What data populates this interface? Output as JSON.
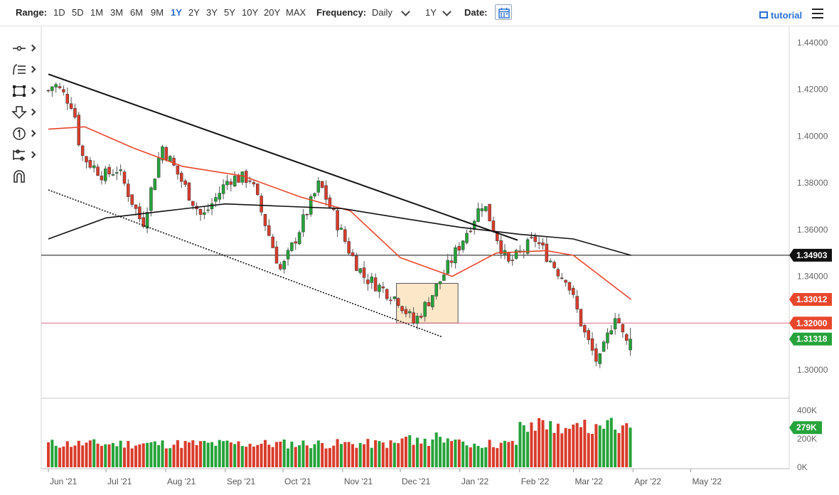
{
  "toolbar": {
    "range_label": "Range:",
    "ranges": [
      "1D",
      "5D",
      "1M",
      "3M",
      "6M",
      "9M",
      "1Y",
      "2Y",
      "3Y",
      "5Y",
      "10Y",
      "20Y",
      "MAX"
    ],
    "active_range": "1Y",
    "frequency_label": "Frequency:",
    "frequency_value": "Daily",
    "period_value": "1Y",
    "date_label": "Date:",
    "tutorial_label": "tutorial",
    "date_icon": "calendar-icon",
    "menu_icon": "hamburger-menu-icon"
  },
  "left_tools": [
    {
      "name": "line-tool",
      "icon": "line-icon"
    },
    {
      "name": "fib-tool",
      "icon": "fibonacci-icon"
    },
    {
      "name": "shape-tool",
      "icon": "rectangle-icon"
    },
    {
      "name": "arrow-tool",
      "icon": "arrow-down-icon"
    },
    {
      "name": "counter-tool",
      "icon": "numbered-circle-icon"
    },
    {
      "name": "measure-tool",
      "icon": "measure-icon"
    },
    {
      "name": "magnet-tool",
      "icon": "magnet-icon"
    }
  ],
  "chart_data": {
    "type": "candlestick",
    "title": "",
    "xlabel": "",
    "ylabel": "",
    "ylim": [
      1.2925,
      1.4475
    ],
    "y_ticks": [
      "1.30000",
      "1.32000",
      "1.34000",
      "1.36000",
      "1.38000",
      "1.40000",
      "1.42000",
      "1.44000"
    ],
    "x_axis_labels": [
      "Jun '21",
      "Jul '21",
      "Aug '21",
      "Sep '21",
      "Oct '21",
      "Nov '21",
      "Dec '21",
      "Jan '22",
      "Feb '22",
      "Mar '22",
      "Apr '22",
      "May '22"
    ],
    "volume_ticks": [
      "0K",
      "200K",
      "400K"
    ],
    "volume_ylim": [
      0,
      400000
    ],
    "grid": false,
    "colors": {
      "up": "#26a33a",
      "down": "#d93c2c",
      "ma_short": "#e8472c",
      "ma_long": "#111111",
      "horizontal_line": "#e26a8a",
      "zone_fill": "#fbe4c0",
      "zone_border": "#555555"
    },
    "price_labels": [
      {
        "text": "1.34903",
        "value": 1.34903,
        "color": "#111111"
      },
      {
        "text": "1.33012",
        "value": 1.33012,
        "color": "#e8472c"
      },
      {
        "text": "1.32000",
        "value": 1.32,
        "color": "#e8472c"
      },
      {
        "text": "1.31318",
        "value": 1.31318,
        "color": "#26a33a"
      }
    ],
    "horizontal_levels": [
      {
        "value": 1.34903,
        "color": "#111111"
      },
      {
        "value": 1.32,
        "color": "#e26a8a"
      }
    ],
    "volume_label": {
      "text": "279K",
      "value": 279000,
      "color": "#26a33a"
    },
    "anchors": [
      {
        "date": "2021-06-01",
        "close": 1.4195
      },
      {
        "date": "2021-06-04",
        "close": 1.4225
      },
      {
        "date": "2021-06-14",
        "close": 1.413
      },
      {
        "date": "2021-06-18",
        "close": 1.392
      },
      {
        "date": "2021-06-23",
        "close": 1.388
      },
      {
        "date": "2021-06-30",
        "close": 1.383
      },
      {
        "date": "2021-07-07",
        "close": 1.386
      },
      {
        "date": "2021-07-20",
        "close": 1.362
      },
      {
        "date": "2021-07-30",
        "close": 1.396
      },
      {
        "date": "2021-08-20",
        "close": 1.365
      },
      {
        "date": "2021-09-03",
        "close": 1.382
      },
      {
        "date": "2021-09-14",
        "close": 1.382
      },
      {
        "date": "2021-09-30",
        "close": 1.342
      },
      {
        "date": "2021-10-20",
        "close": 1.38
      },
      {
        "date": "2021-11-05",
        "close": 1.35
      },
      {
        "date": "2021-11-12",
        "close": 1.34
      },
      {
        "date": "2021-11-30",
        "close": 1.33
      },
      {
        "date": "2021-12-08",
        "close": 1.32
      },
      {
        "date": "2021-12-16",
        "close": 1.33
      },
      {
        "date": "2021-12-23",
        "close": 1.34
      },
      {
        "date": "2022-01-13",
        "close": 1.372
      },
      {
        "date": "2022-01-26",
        "close": 1.345
      },
      {
        "date": "2022-02-09",
        "close": 1.356
      },
      {
        "date": "2022-02-23",
        "close": 1.34
      },
      {
        "date": "2022-02-25",
        "close": 1.34
      },
      {
        "date": "2022-03-07",
        "close": 1.315
      },
      {
        "date": "2022-03-14",
        "close": 1.302
      },
      {
        "date": "2022-03-23",
        "close": 1.325
      },
      {
        "date": "2022-03-28",
        "close": 1.311
      },
      {
        "date": "2022-03-31",
        "close": 1.3135
      }
    ],
    "ma_short_points": [
      {
        "date": "2021-06-01",
        "value": 1.403
      },
      {
        "date": "2021-06-20",
        "value": 1.404
      },
      {
        "date": "2021-07-15",
        "value": 1.395
      },
      {
        "date": "2021-08-10",
        "value": 1.387
      },
      {
        "date": "2021-09-10",
        "value": 1.383
      },
      {
        "date": "2021-10-10",
        "value": 1.374
      },
      {
        "date": "2021-11-05",
        "value": 1.368
      },
      {
        "date": "2021-12-01",
        "value": 1.348
      },
      {
        "date": "2021-12-28",
        "value": 1.34
      },
      {
        "date": "2022-01-20",
        "value": 1.35
      },
      {
        "date": "2022-02-15",
        "value": 1.351
      },
      {
        "date": "2022-03-01",
        "value": 1.349
      },
      {
        "date": "2022-03-31",
        "value": 1.3301
      }
    ],
    "ma_long_points": [
      {
        "date": "2021-06-01",
        "value": 1.356
      },
      {
        "date": "2021-07-01",
        "value": 1.365
      },
      {
        "date": "2021-08-01",
        "value": 1.368
      },
      {
        "date": "2021-09-01",
        "value": 1.371
      },
      {
        "date": "2021-10-01",
        "value": 1.37
      },
      {
        "date": "2021-11-01",
        "value": 1.369
      },
      {
        "date": "2021-12-01",
        "value": 1.365
      },
      {
        "date": "2022-01-01",
        "value": 1.361
      },
      {
        "date": "2022-02-01",
        "value": 1.358
      },
      {
        "date": "2022-03-01",
        "value": 1.356
      },
      {
        "date": "2022-03-31",
        "value": 1.349
      }
    ],
    "trendlines": [
      {
        "style": "solid",
        "from": {
          "date": "2021-06-01",
          "value": 1.4265
        },
        "to": {
          "date": "2022-01-31",
          "value": 1.3555
        }
      },
      {
        "style": "dotted",
        "from": {
          "date": "2021-06-01",
          "value": 1.377
        },
        "to": {
          "date": "2021-12-23",
          "value": 1.314
        }
      }
    ],
    "zone": {
      "from": "2021-11-29",
      "to": "2021-12-31",
      "top": 1.337,
      "bottom": 1.32
    }
  }
}
